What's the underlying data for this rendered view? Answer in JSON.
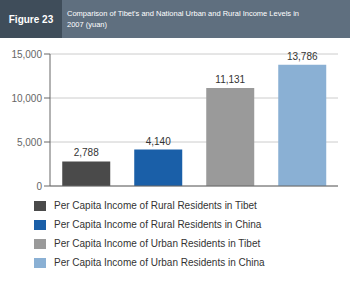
{
  "chart_data": {
    "type": "bar",
    "title": "Comparison of Tibet's and National Urban and Rural Income Levels in\n2007 (yuan)",
    "annotations": [
      "Figure 23"
    ],
    "categories": [
      "Per Capita Income of Rural Residents in Tibet",
      "Per Capita Income of Rural Residents in China",
      "Per Capita Income of Urban Residents in Tibet",
      "Per Capita Income of Urban Residents in China"
    ],
    "values": [
      2788,
      4140,
      11131,
      13786
    ],
    "value_labels": [
      "2,788",
      "4,140",
      "11,131",
      "13,786"
    ],
    "data_labels": true,
    "colors": [
      "#4a4a4a",
      "#1a5fa8",
      "#9a9a9a",
      "#8ab0d4"
    ],
    "ylim": [
      0,
      15000
    ],
    "yticks": [
      0,
      {
        "value": 5000,
        "label": "5,000 "
      },
      {
        "value": 10000,
        "label": "10,000"
      },
      {
        "value": 15000,
        "label": "15,000"
      }
    ],
    "grid": true,
    "tick_labels": "y",
    "legend": "bottom"
  }
}
